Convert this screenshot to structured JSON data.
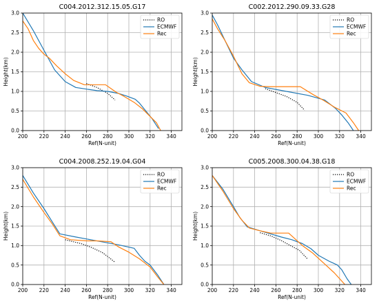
{
  "chart_data": [
    {
      "type": "line",
      "title": "C004.2012.312.15.05.G17",
      "xlabel": "Ref(N-unit)",
      "ylabel": "Height(km)",
      "xlim": [
        200,
        350
      ],
      "ylim": [
        0,
        3.0
      ],
      "xticks": [
        "200",
        "220",
        "240",
        "260",
        "280",
        "300",
        "320",
        "340"
      ],
      "yticks": [
        "0.0",
        "0.5",
        "1.0",
        "1.5",
        "2.0",
        "2.5",
        "3.0"
      ],
      "grid": true,
      "legend": "top-right",
      "series": [
        {
          "name": "RO",
          "color": "#000000",
          "dash": "dotted",
          "x": [
            260,
            270,
            280,
            287
          ],
          "y": [
            1.2,
            1.1,
            0.95,
            0.78
          ]
        },
        {
          "name": "ECMWF",
          "color": "#1f77b4",
          "dash": "solid",
          "x": [
            200,
            210,
            222,
            230,
            240,
            250,
            262,
            270,
            280,
            290,
            298,
            306,
            310,
            316,
            322,
            328
          ],
          "y": [
            3.0,
            2.55,
            1.95,
            1.55,
            1.25,
            1.1,
            1.05,
            1.02,
            1.0,
            0.95,
            0.88,
            0.8,
            0.7,
            0.5,
            0.3,
            0.05
          ]
        },
        {
          "name": "Rec",
          "color": "#ff7f0e",
          "dash": "solid",
          "x": [
            200,
            205,
            210,
            215,
            220,
            225,
            232,
            240,
            248,
            258,
            268,
            278,
            288,
            295,
            305,
            313,
            320,
            326,
            330
          ],
          "y": [
            2.8,
            2.6,
            2.3,
            2.1,
            1.95,
            1.85,
            1.65,
            1.45,
            1.28,
            1.17,
            1.17,
            1.17,
            0.98,
            0.88,
            0.72,
            0.55,
            0.36,
            0.2,
            0.0
          ]
        }
      ]
    },
    {
      "type": "line",
      "title": "C002.2012.290.09.33.G28",
      "xlabel": "Ref(N-unit)",
      "ylabel": "Height(km)",
      "xlim": [
        200,
        350
      ],
      "ylim": [
        0,
        3.0
      ],
      "xticks": [
        "200",
        "220",
        "240",
        "260",
        "280",
        "300",
        "320",
        "340"
      ],
      "yticks": [
        "0.0",
        "0.5",
        "1.0",
        "1.5",
        "2.0",
        "2.5",
        "3.0"
      ],
      "grid": true,
      "legend": "top-right",
      "series": [
        {
          "name": "RO",
          "color": "#000000",
          "dash": "dotted",
          "x": [
            250,
            260,
            270,
            280,
            287
          ],
          "y": [
            1.07,
            0.97,
            0.87,
            0.72,
            0.52
          ]
        },
        {
          "name": "ECMWF",
          "color": "#1f77b4",
          "dash": "solid",
          "x": [
            200,
            205,
            212,
            220,
            228,
            237,
            250,
            270,
            290,
            306,
            316,
            322,
            328,
            333
          ],
          "y": [
            2.95,
            2.7,
            2.3,
            1.85,
            1.55,
            1.25,
            1.1,
            1.0,
            0.9,
            0.78,
            0.57,
            0.4,
            0.2,
            0.0
          ]
        },
        {
          "name": "Rec",
          "color": "#ff7f0e",
          "dash": "solid",
          "x": [
            200,
            205,
            212,
            220,
            228,
            235,
            245,
            255,
            270,
            283,
            295,
            305,
            315,
            326,
            333,
            338
          ],
          "y": [
            2.85,
            2.6,
            2.3,
            1.9,
            1.45,
            1.22,
            1.13,
            1.12,
            1.12,
            1.12,
            0.92,
            0.77,
            0.6,
            0.45,
            0.2,
            0.0
          ]
        }
      ]
    },
    {
      "type": "line",
      "title": "C004.2008.252.19.04.G04",
      "xlabel": "Ref(N-unit)",
      "ylabel": "Height(km)",
      "xlim": [
        200,
        350
      ],
      "ylim": [
        0,
        3.0
      ],
      "xticks": [
        "200",
        "220",
        "240",
        "260",
        "280",
        "300",
        "320",
        "340"
      ],
      "yticks": [
        "0.0",
        "0.5",
        "1.0",
        "1.5",
        "2.0",
        "2.5",
        "3.0"
      ],
      "grid": true,
      "legend": "top-right",
      "series": [
        {
          "name": "RO",
          "color": "#000000",
          "dash": "dotted",
          "x": [
            240,
            255,
            265,
            275,
            280,
            287
          ],
          "y": [
            1.15,
            1.05,
            0.95,
            0.82,
            0.72,
            0.57
          ]
        },
        {
          "name": "ECMWF",
          "color": "#1f77b4",
          "dash": "solid",
          "x": [
            200,
            210,
            220,
            228,
            235,
            250,
            270,
            290,
            305,
            310,
            315,
            320,
            327,
            333
          ],
          "y": [
            2.8,
            2.35,
            1.95,
            1.6,
            1.3,
            1.22,
            1.12,
            1.02,
            0.93,
            0.75,
            0.6,
            0.5,
            0.25,
            0.0
          ]
        },
        {
          "name": "Rec",
          "color": "#ff7f0e",
          "dash": "solid",
          "x": [
            200,
            210,
            220,
            228,
            235,
            245,
            260,
            270,
            283,
            290,
            300,
            310,
            320,
            327,
            333
          ],
          "y": [
            2.7,
            2.25,
            1.85,
            1.55,
            1.25,
            1.15,
            1.12,
            1.12,
            1.1,
            0.97,
            0.83,
            0.66,
            0.45,
            0.2,
            0.0
          ]
        }
      ]
    },
    {
      "type": "line",
      "title": "C005.2008.300.04.38.G18",
      "xlabel": "Ref(N-unit)",
      "ylabel": "Height(km)",
      "xlim": [
        200,
        350
      ],
      "ylim": [
        0,
        3.0
      ],
      "xticks": [
        "200",
        "220",
        "240",
        "260",
        "280",
        "300",
        "320",
        "340"
      ],
      "yticks": [
        "0.0",
        "0.5",
        "1.0",
        "1.5",
        "2.0",
        "2.5",
        "3.0"
      ],
      "grid": true,
      "legend": "top-right",
      "series": [
        {
          "name": "RO",
          "color": "#000000",
          "dash": "dotted",
          "x": [
            245,
            255,
            265,
            275,
            282,
            290
          ],
          "y": [
            1.33,
            1.25,
            1.13,
            0.98,
            0.88,
            0.65
          ]
        },
        {
          "name": "ECMWF",
          "color": "#1f77b4",
          "dash": "solid",
          "x": [
            200,
            210,
            220,
            226,
            233,
            245,
            255,
            265,
            275,
            285,
            293,
            300,
            310,
            318,
            322,
            327,
            331
          ],
          "y": [
            2.8,
            2.45,
            2.0,
            1.72,
            1.48,
            1.38,
            1.3,
            1.22,
            1.15,
            1.05,
            0.92,
            0.75,
            0.6,
            0.5,
            0.38,
            0.15,
            0.0
          ]
        },
        {
          "name": "Rec",
          "color": "#ff7f0e",
          "dash": "solid",
          "x": [
            200,
            210,
            220,
            228,
            235,
            245,
            255,
            265,
            272,
            285,
            295,
            305,
            315,
            325
          ],
          "y": [
            2.8,
            2.4,
            1.95,
            1.65,
            1.45,
            1.38,
            1.32,
            1.32,
            1.32,
            1.0,
            0.8,
            0.55,
            0.3,
            0.0
          ]
        }
      ]
    }
  ]
}
